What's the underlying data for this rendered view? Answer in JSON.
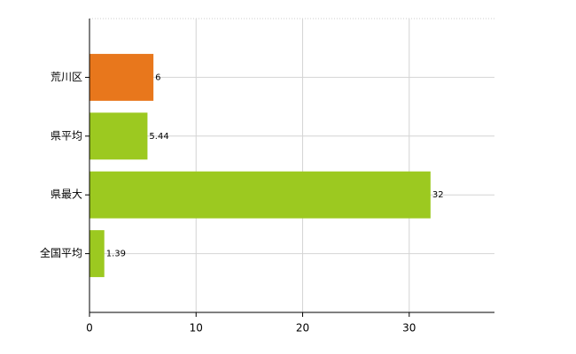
{
  "chart_data": {
    "type": "hbar",
    "categories": [
      "荒川区",
      "県平均",
      "県最大",
      "全国平均"
    ],
    "values": [
      6,
      5.44,
      32,
      1.39
    ],
    "colors": [
      "#e8771c",
      "#9cc920",
      "#9cc920",
      "#9cc920"
    ],
    "xlim": [
      0,
      38
    ],
    "xticks": [
      0,
      10,
      20,
      30
    ],
    "grid": true
  }
}
